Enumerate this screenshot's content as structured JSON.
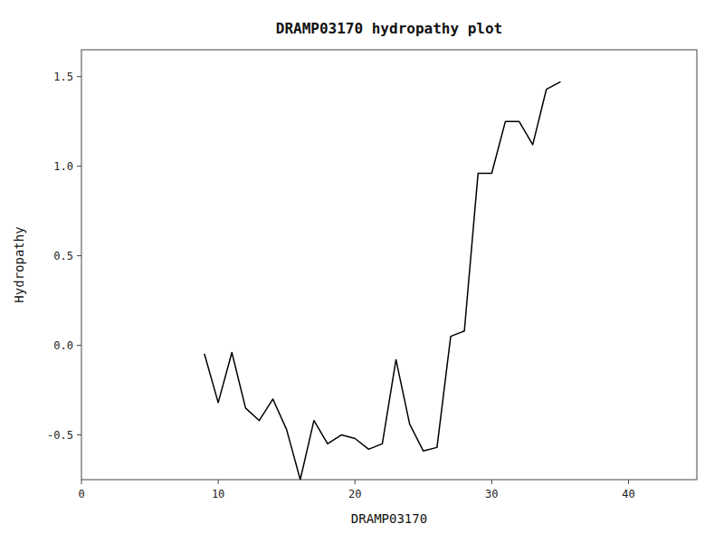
{
  "chart_data": {
    "type": "line",
    "title": "DRAMP03170 hydropathy plot",
    "xlabel": "DRAMP03170",
    "ylabel": "Hydropathy",
    "x": [
      9,
      10,
      11,
      12,
      13,
      14,
      15,
      16,
      17,
      18,
      19,
      20,
      21,
      22,
      23,
      24,
      25,
      26,
      27,
      28,
      29,
      30,
      31,
      32,
      33,
      34,
      35
    ],
    "values": [
      -0.05,
      -0.32,
      -0.04,
      -0.35,
      -0.42,
      -0.3,
      -0.47,
      -0.75,
      -0.42,
      -0.55,
      -0.5,
      -0.52,
      -0.58,
      -0.55,
      -0.08,
      -0.44,
      -0.59,
      -0.57,
      0.05,
      0.08,
      0.96,
      0.96,
      1.25,
      1.25,
      1.12,
      1.43,
      1.47
    ],
    "color": "#000000",
    "xlim": [
      0,
      45
    ],
    "ylim": [
      -0.75,
      1.65
    ],
    "xticks": [
      0,
      10,
      20,
      30,
      40
    ],
    "yticks": [
      -0.5,
      {
        "value": 0.0,
        "label": "0.0"
      },
      0.5,
      {
        "value": 1.0,
        "label": "1.0"
      },
      1.5
    ],
    "grid": false
  }
}
